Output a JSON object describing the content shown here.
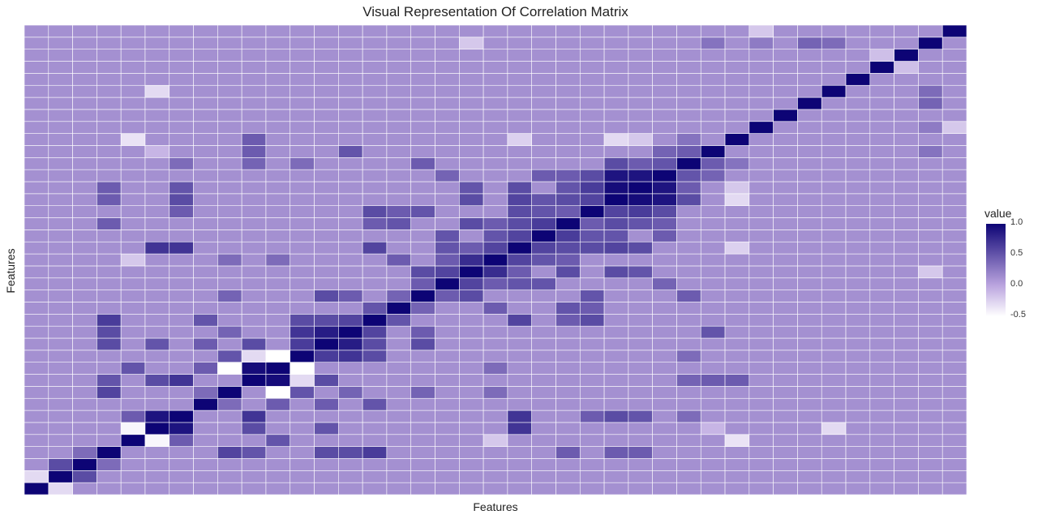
{
  "chart_data": {
    "type": "heatmap",
    "title": "Visual Representation Of Correlation Matrix",
    "xlabel": "Features",
    "ylabel": "Features",
    "n_features": 39,
    "color_scale": {
      "low": "#ffffff",
      "mid": "#b9a3de",
      "high": "#0d0475",
      "range": [
        -0.5,
        1.0
      ]
    },
    "legend": {
      "title": "value",
      "position": "right",
      "ticks": [
        {
          "value": 1.0,
          "label": "1.0"
        },
        {
          "value": 0.5,
          "label": "0.5"
        },
        {
          "value": 0.0,
          "label": "0.0"
        },
        {
          "value": -0.5,
          "label": "-0.5"
        }
      ]
    },
    "background_value": 0.12,
    "diagonal_value": 1.0,
    "notable_correlations": [
      [
        0,
        1,
        -0.3
      ],
      [
        1,
        2,
        0.55
      ],
      [
        2,
        3,
        0.35
      ],
      [
        3,
        14,
        0.65
      ],
      [
        3,
        13,
        0.55
      ],
      [
        3,
        8,
        0.6
      ],
      [
        3,
        9,
        0.5
      ],
      [
        3,
        12,
        0.55
      ],
      [
        3,
        25,
        0.45
      ],
      [
        3,
        24,
        0.45
      ],
      [
        3,
        22,
        0.45
      ],
      [
        4,
        5,
        -0.45
      ],
      [
        4,
        19,
        -0.2
      ],
      [
        4,
        6,
        0.45
      ],
      [
        4,
        10,
        0.5
      ],
      [
        5,
        6,
        0.9
      ],
      [
        5,
        9,
        0.55
      ],
      [
        5,
        12,
        0.5
      ],
      [
        5,
        20,
        0.7
      ],
      [
        5,
        33,
        -0.3
      ],
      [
        5,
        28,
        -0.1
      ],
      [
        6,
        9,
        0.7
      ],
      [
        6,
        20,
        0.7
      ],
      [
        6,
        23,
        0.45
      ],
      [
        6,
        24,
        0.55
      ],
      [
        6,
        25,
        0.5
      ],
      [
        6,
        27,
        0.35
      ],
      [
        7,
        8,
        0.35
      ],
      [
        7,
        10,
        0.45
      ],
      [
        7,
        12,
        0.45
      ],
      [
        7,
        14,
        0.5
      ],
      [
        8,
        10,
        -0.5
      ],
      [
        8,
        11,
        0.5
      ],
      [
        8,
        19,
        0.35
      ],
      [
        8,
        13,
        0.4
      ],
      [
        8,
        16,
        0.4
      ],
      [
        9,
        10,
        0.95
      ],
      [
        9,
        11,
        -0.3
      ],
      [
        9,
        12,
        0.55
      ],
      [
        9,
        27,
        0.4
      ],
      [
        9,
        28,
        0.45
      ],
      [
        9,
        29,
        0.45
      ],
      [
        10,
        11,
        -0.5
      ],
      [
        10,
        19,
        0.35
      ],
      [
        11,
        12,
        0.65
      ],
      [
        11,
        13,
        0.7
      ],
      [
        11,
        14,
        0.55
      ],
      [
        11,
        27,
        0.35
      ],
      [
        12,
        13,
        0.85
      ],
      [
        12,
        14,
        0.55
      ],
      [
        12,
        16,
        0.55
      ],
      [
        13,
        14,
        0.6
      ],
      [
        13,
        16,
        0.45
      ],
      [
        13,
        28,
        0.5
      ],
      [
        14,
        15,
        0.5
      ],
      [
        14,
        20,
        0.6
      ],
      [
        14,
        23,
        0.55
      ],
      [
        14,
        22,
        0.45
      ],
      [
        15,
        16,
        0.4
      ],
      [
        15,
        19,
        0.45
      ],
      [
        15,
        22,
        0.5
      ],
      [
        15,
        23,
        0.45
      ],
      [
        16,
        17,
        0.45
      ],
      [
        16,
        18,
        0.55
      ],
      [
        16,
        23,
        0.5
      ],
      [
        16,
        27,
        0.45
      ],
      [
        17,
        18,
        0.6
      ],
      [
        17,
        19,
        0.45
      ],
      [
        17,
        20,
        0.5
      ],
      [
        17,
        21,
        0.5
      ],
      [
        17,
        26,
        0.4
      ],
      [
        18,
        19,
        0.75
      ],
      [
        18,
        20,
        0.45
      ],
      [
        18,
        22,
        0.55
      ],
      [
        18,
        24,
        0.55
      ],
      [
        18,
        25,
        0.5
      ],
      [
        19,
        20,
        0.6
      ],
      [
        19,
        21,
        0.5
      ],
      [
        19,
        22,
        0.45
      ],
      [
        20,
        21,
        0.6
      ],
      [
        20,
        22,
        0.55
      ],
      [
        20,
        23,
        0.55
      ],
      [
        20,
        24,
        0.6
      ],
      [
        20,
        25,
        0.55
      ],
      [
        21,
        22,
        0.65
      ],
      [
        21,
        23,
        0.5
      ],
      [
        21,
        24,
        0.5
      ],
      [
        21,
        26,
        0.45
      ],
      [
        22,
        23,
        0.45
      ],
      [
        22,
        24,
        0.55
      ],
      [
        22,
        25,
        0.5
      ],
      [
        22,
        26,
        0.45
      ],
      [
        23,
        24,
        0.6
      ],
      [
        23,
        25,
        0.65
      ],
      [
        23,
        26,
        0.55
      ],
      [
        24,
        25,
        0.95
      ],
      [
        24,
        26,
        0.9
      ],
      [
        24,
        27,
        0.55
      ],
      [
        25,
        26,
        0.9
      ],
      [
        25,
        27,
        0.45
      ],
      [
        26,
        27,
        0.5
      ],
      [
        26,
        28,
        0.4
      ],
      [
        27,
        28,
        0.45
      ],
      [
        27,
        29,
        0.3
      ],
      [
        24,
        29,
        -0.3
      ],
      [
        25,
        29,
        -0.2
      ],
      [
        20,
        29,
        -0.25
      ],
      [
        4,
        29,
        -0.35
      ],
      [
        32,
        37,
        0.4
      ],
      [
        33,
        37,
        0.35
      ],
      [
        28,
        37,
        0.3
      ],
      [
        30,
        37,
        0.25
      ],
      [
        35,
        36,
        -0.15
      ],
      [
        30,
        38,
        -0.2
      ],
      [
        18,
        37,
        -0.2
      ]
    ]
  }
}
